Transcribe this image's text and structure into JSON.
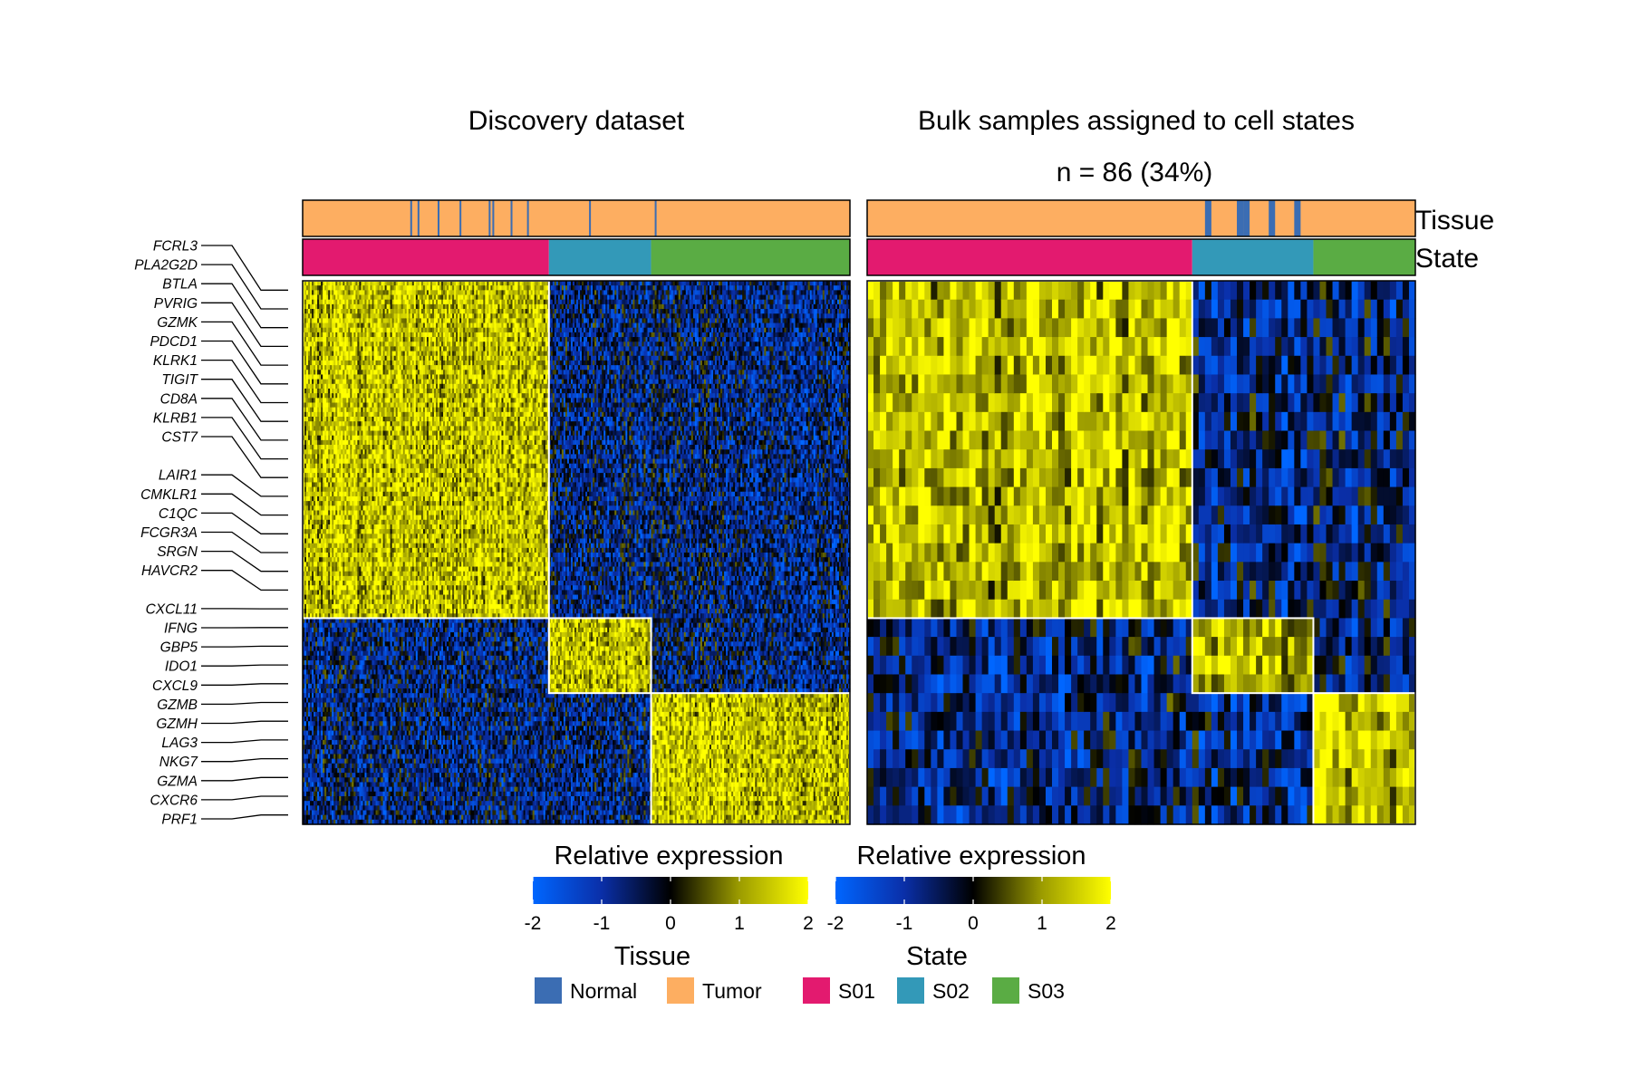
{
  "chart_data": {
    "type": "heatmap",
    "panels": [
      {
        "title": "Discovery dataset",
        "subtitle": "",
        "state_blocks": [
          {
            "state": "S01",
            "fraction": 0.45
          },
          {
            "state": "S02",
            "fraction": 0.185
          },
          {
            "state": "S03",
            "fraction": 0.365
          }
        ],
        "normal_fraction": 0.06,
        "columns": 300
      },
      {
        "title": "Bulk samples assigned to cell states",
        "subtitle": "n = 86 (34%)",
        "state_blocks": [
          {
            "state": "S01",
            "count": 51
          },
          {
            "state": "S02",
            "count": 19
          },
          {
            "state": "S03",
            "count": 16
          }
        ],
        "normal_columns": [
          53,
          58,
          59,
          63,
          67
        ],
        "columns": 86
      }
    ],
    "genes": [
      "FCRL3",
      "PLA2G2D",
      "BTLA",
      "PVRIG",
      "GZMK",
      "PDCD1",
      "KLRK1",
      "TIGIT",
      "CD8A",
      "KLRB1",
      "CST7",
      "LAIR1",
      "CMKLR1",
      "C1QC",
      "FCGR3A",
      "SRGN",
      "HAVCR2",
      "CXCL11",
      "IFNG",
      "GBP5",
      "IDO1",
      "CXCL9",
      "GZMB",
      "GZMH",
      "LAG3",
      "NKG7",
      "GZMA",
      "CXCR6",
      "PRF1"
    ],
    "gene_groups": [
      {
        "state": "S01",
        "row_fraction": 0.61
      },
      {
        "state": "S02",
        "row_fraction": 0.16
      },
      {
        "state": "S03",
        "row_fraction": 0.23
      }
    ],
    "annotation_tracks": [
      "Tissue",
      "State"
    ],
    "color_scale": {
      "title": "Relative expression",
      "min": -2,
      "max": 2,
      "ticks": [
        "-2",
        "-1",
        "0",
        "1",
        "2"
      ],
      "stops": [
        "#0066ff",
        "#0a2fa8",
        "#000000",
        "#9c9c00",
        "#ffff00"
      ]
    },
    "legends": [
      {
        "title": "Tissue",
        "items": [
          {
            "label": "Normal",
            "color": "#3b6db3"
          },
          {
            "label": "Tumor",
            "color": "#fdae61"
          }
        ]
      },
      {
        "title": "State",
        "items": [
          {
            "label": "S01",
            "color": "#e31a6f"
          },
          {
            "label": "S02",
            "color": "#3399b8"
          },
          {
            "label": "S03",
            "color": "#5aac44"
          }
        ]
      }
    ]
  }
}
